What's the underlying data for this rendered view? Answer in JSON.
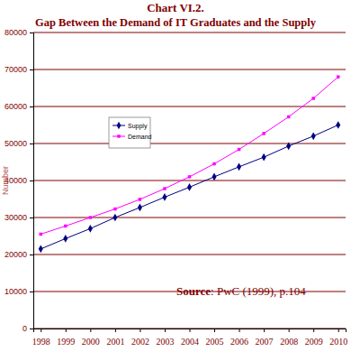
{
  "chart_data": {
    "type": "line",
    "title": "Chart VI.2.",
    "subtitle": "Gap Between the Demand of IT Graduates and the Supply",
    "y_label": "Number",
    "annotation": "Source: PwC (1999), p.104",
    "categories": [
      "1998",
      "1999",
      "2000",
      "2001",
      "2002",
      "2003",
      "2004",
      "2005",
      "2006",
      "2007",
      "2008",
      "2009",
      "2010"
    ],
    "series": [
      {
        "name": "Supply",
        "color": "#000080",
        "marker": "diamond",
        "values": [
          21500,
          24300,
          27000,
          30000,
          32700,
          35500,
          38200,
          41000,
          43700,
          46300,
          49300,
          52000,
          55000
        ]
      },
      {
        "name": "Demand",
        "color": "#ff00ff",
        "marker": "square",
        "values": [
          25500,
          27700,
          30000,
          32300,
          34900,
          37800,
          41000,
          44500,
          48400,
          52700,
          57200,
          62200,
          68000
        ]
      }
    ],
    "ylim": [
      0,
      80000
    ],
    "yticks": [
      0,
      10000,
      20000,
      30000,
      40000,
      50000,
      60000,
      70000,
      80000
    ],
    "grid": true,
    "legend": "upper left"
  }
}
